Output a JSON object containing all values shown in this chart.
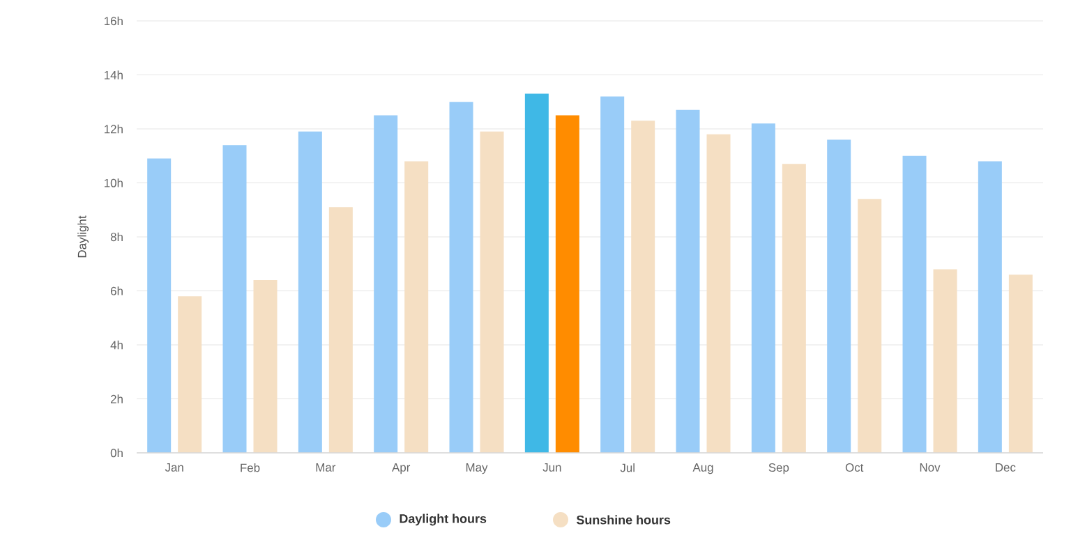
{
  "chart_data": {
    "type": "bar",
    "ylabel": "Daylight",
    "categories": [
      "Jan",
      "Feb",
      "Mar",
      "Apr",
      "May",
      "Jun",
      "Jul",
      "Aug",
      "Sep",
      "Oct",
      "Nov",
      "Dec"
    ],
    "series": [
      {
        "name": "Daylight hours",
        "color": "#99ccf8",
        "colors": [
          "#99ccf8",
          "#99ccf8",
          "#99ccf8",
          "#99ccf8",
          "#99ccf8",
          "#3fb8e6",
          "#99ccf8",
          "#99ccf8",
          "#99ccf8",
          "#99ccf8",
          "#99ccf8",
          "#99ccf8"
        ],
        "values": [
          10.9,
          11.4,
          11.9,
          12.5,
          13.0,
          13.3,
          13.2,
          12.7,
          12.2,
          11.6,
          11.0,
          10.8
        ]
      },
      {
        "name": "Sunshine hours",
        "color": "#f5dfc3",
        "colors": [
          "#f5dfc3",
          "#f5dfc3",
          "#f5dfc3",
          "#f5dfc3",
          "#f5dfc3",
          "#ff8c00",
          "#f5dfc3",
          "#f5dfc3",
          "#f5dfc3",
          "#f5dfc3",
          "#f5dfc3",
          "#f5dfc3"
        ],
        "values": [
          5.8,
          6.4,
          9.1,
          10.8,
          11.9,
          12.5,
          12.3,
          11.8,
          10.7,
          9.4,
          6.8,
          6.6
        ]
      }
    ],
    "ylim": [
      0,
      16
    ],
    "yticks": [
      {
        "value": 0,
        "label": "0h"
      },
      {
        "value": 2,
        "label": "2h"
      },
      {
        "value": 4,
        "label": "4h"
      },
      {
        "value": 6,
        "label": "6h"
      },
      {
        "value": 8,
        "label": "8h"
      },
      {
        "value": 10,
        "label": "10h"
      },
      {
        "value": 12,
        "label": "12h"
      },
      {
        "value": 14,
        "label": "14h"
      },
      {
        "value": 16,
        "label": "16h"
      }
    ],
    "grid": "y",
    "legend": "bottom"
  }
}
